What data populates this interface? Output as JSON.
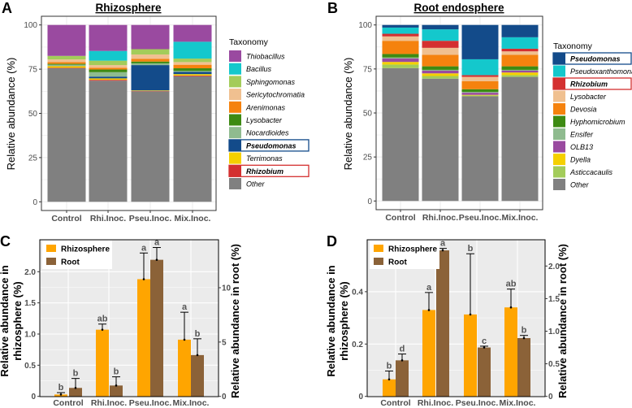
{
  "chart_data": [
    {
      "panel_label": "A",
      "type": "bar",
      "stacked": true,
      "title": "Rhizosphere",
      "ylabel": "Relative abundance (%)",
      "ylim": [
        0,
        100
      ],
      "yticks": [
        "0",
        "25",
        "50",
        "75",
        "100"
      ],
      "categories": [
        "Control",
        "Rhi.Inoc.",
        "Pseu.Inoc.",
        "Mix.Inoc."
      ],
      "legend_title": "Taxonomy",
      "grid": true,
      "series": [
        {
          "name": "Thiobacillus",
          "color": "#9a4aa0",
          "italic": true,
          "values": [
            17.5,
            14.7,
            13.7,
            9.5
          ]
        },
        {
          "name": "Bacillus",
          "color": "#14c8cc",
          "italic": true,
          "values": [
            0,
            5.5,
            0,
            9.5
          ]
        },
        {
          "name": "Sphingomonas",
          "color": "#a3cc5a",
          "italic": true,
          "values": [
            2,
            2.5,
            3,
            2
          ]
        },
        {
          "name": "Sericytochromatia",
          "color": "#f0c090",
          "italic": true,
          "values": [
            1.5,
            1.5,
            2.5,
            1.5
          ]
        },
        {
          "name": "Arenimonas",
          "color": "#f5820e",
          "italic": true,
          "values": [
            1,
            1,
            1.5,
            2
          ]
        },
        {
          "name": "Lysobacter",
          "color": "#3d8a12",
          "italic": true,
          "values": [
            0.5,
            1.5,
            1,
            1.5
          ]
        },
        {
          "name": "Nocardioides",
          "color": "#8fbb8f",
          "italic": true,
          "values": [
            0.5,
            2.5,
            1,
            0.5
          ]
        },
        {
          "name": "Pseudomonas",
          "color": "#134b8a",
          "italic": true,
          "highlight": "#134b8a",
          "values": [
            0.2,
            1,
            14.3,
            1.3
          ]
        },
        {
          "name": "Terrimonas",
          "color": "#f5d000",
          "italic": true,
          "values": [
            1,
            0.8,
            0.3,
            0.8
          ]
        },
        {
          "name": "Rhizobium",
          "color": "#d43030",
          "italic": true,
          "highlight": "#d43030",
          "values": [
            0.3,
            0.5,
            0.2,
            0.4
          ]
        },
        {
          "name": "Other",
          "color": "#808080",
          "italic": false,
          "values": [
            75.5,
            68.5,
            62.5,
            71
          ]
        }
      ]
    },
    {
      "panel_label": "B",
      "type": "bar",
      "stacked": true,
      "title": "Root endosphere",
      "ylabel": "Relative abundance (%)",
      "ylim": [
        0,
        100
      ],
      "yticks": [
        "0",
        "25",
        "50",
        "75",
        "100"
      ],
      "categories": [
        "Control",
        "Rhi.Inoc.",
        "Pseu.Inoc.",
        "Mix.Inoc."
      ],
      "legend_title": "Taxonomy",
      "grid": true,
      "series": [
        {
          "name": "Pseudomonas",
          "color": "#134b8a",
          "italic": true,
          "highlight": "#134b8a",
          "values": [
            1.5,
            2.5,
            19.5,
            7
          ]
        },
        {
          "name": "Pseudoxanthomonas",
          "color": "#14c8cc",
          "italic": true,
          "values": [
            3.5,
            6.5,
            9,
            6.5
          ]
        },
        {
          "name": "Rhizobium",
          "color": "#d43030",
          "italic": true,
          "highlight": "#d43030",
          "values": [
            1.5,
            4,
            1,
            1.5
          ]
        },
        {
          "name": "Lysobacter",
          "color": "#f0c090",
          "italic": true,
          "values": [
            2.5,
            4,
            2.5,
            2
          ]
        },
        {
          "name": "Devosia",
          "color": "#f5820e",
          "italic": true,
          "values": [
            7.5,
            6.5,
            4.5,
            6.5
          ]
        },
        {
          "name": "Hyphomicrobium",
          "color": "#3d8a12",
          "italic": true,
          "values": [
            2,
            2,
            1.5,
            2
          ]
        },
        {
          "name": "Ensifer",
          "color": "#8fbb8f",
          "italic": true,
          "values": [
            0.5,
            0.5,
            0.5,
            0.5
          ]
        },
        {
          "name": "OLB13",
          "color": "#9a4aa0",
          "italic": false,
          "values": [
            2,
            1.5,
            1.2,
            1
          ]
        },
        {
          "name": "Dyella",
          "color": "#f5d000",
          "italic": true,
          "values": [
            1.5,
            1.5,
            0.3,
            1.5
          ]
        },
        {
          "name": "Asticcacaulis",
          "color": "#a3cc5a",
          "italic": true,
          "values": [
            2,
            1.5,
            0.5,
            1
          ]
        },
        {
          "name": "Other",
          "color": "#808080",
          "italic": false,
          "values": [
            75.5,
            69.5,
            59.5,
            70.5
          ]
        }
      ]
    },
    {
      "panel_label": "C",
      "type": "bar",
      "stacked": false,
      "categories": [
        "Control",
        "Rhi.Inoc.",
        "Pseu.Inoc.",
        "Mix.Inoc."
      ],
      "ylabel": [
        "Relative abundance in",
        "rhizosphere (%)"
      ],
      "ylabel_right": "Relative abundance in root (%)",
      "ylim": [
        0,
        2.5
      ],
      "ylim_right": [
        0,
        14.3
      ],
      "yticks": [
        "0",
        "0.5",
        "1.0",
        "1.5",
        "2.0"
      ],
      "yticks_right": [
        "0",
        "5",
        "10"
      ],
      "legend_placement": "top-left",
      "grid": true,
      "series": [
        {
          "name": "Rhizosphere",
          "axis": "left",
          "color": "#ffa500",
          "values": [
            0.03,
            1.07,
            1.88,
            0.91
          ],
          "error_upper": [
            0.06,
            1.16,
            2.3,
            1.35
          ],
          "letters": [
            "b",
            "ab",
            "a",
            "a"
          ]
        },
        {
          "name": "Root",
          "axis": "right",
          "color": "#8b6238",
          "values": [
            0.78,
            1.0,
            12.57,
            3.8
          ],
          "error_upper": [
            1.65,
            1.8,
            13.7,
            5.3
          ],
          "letters": [
            "b",
            "b",
            "a",
            "b"
          ]
        }
      ]
    },
    {
      "panel_label": "D",
      "type": "bar",
      "stacked": false,
      "categories": [
        "Control",
        "Rhi.Inoc.",
        "Pseu.Inoc.",
        "Mix.Inoc."
      ],
      "ylabel": [
        "Relative abundance in",
        "rhizosphere (%)"
      ],
      "ylabel_right": "Relative abundance in root (%)",
      "ylim": [
        0,
        0.58
      ],
      "ylim_right": [
        0,
        2.35
      ],
      "yticks": [
        "0",
        "0.2",
        "0.4"
      ],
      "yticks_right": [
        "0",
        "0.5",
        "1.0",
        "1.5",
        "2.0"
      ],
      "legend_placement": "top-left",
      "grid": true,
      "series": [
        {
          "name": "Rhizosphere",
          "axis": "left",
          "color": "#ffa500",
          "values": [
            0.065,
            0.33,
            0.313,
            0.34
          ],
          "error_upper": [
            0.097,
            0.397,
            0.545,
            0.41
          ],
          "letters": [
            "b",
            "a",
            "b",
            "ab"
          ]
        },
        {
          "name": "Root",
          "axis": "right",
          "color": "#8b6238",
          "values": [
            0.553,
            2.24,
            0.75,
            0.894
          ],
          "error_upper": [
            0.65,
            2.27,
            0.77,
            0.935
          ],
          "letters": [
            "d",
            "a",
            "c",
            "b"
          ]
        }
      ]
    }
  ]
}
